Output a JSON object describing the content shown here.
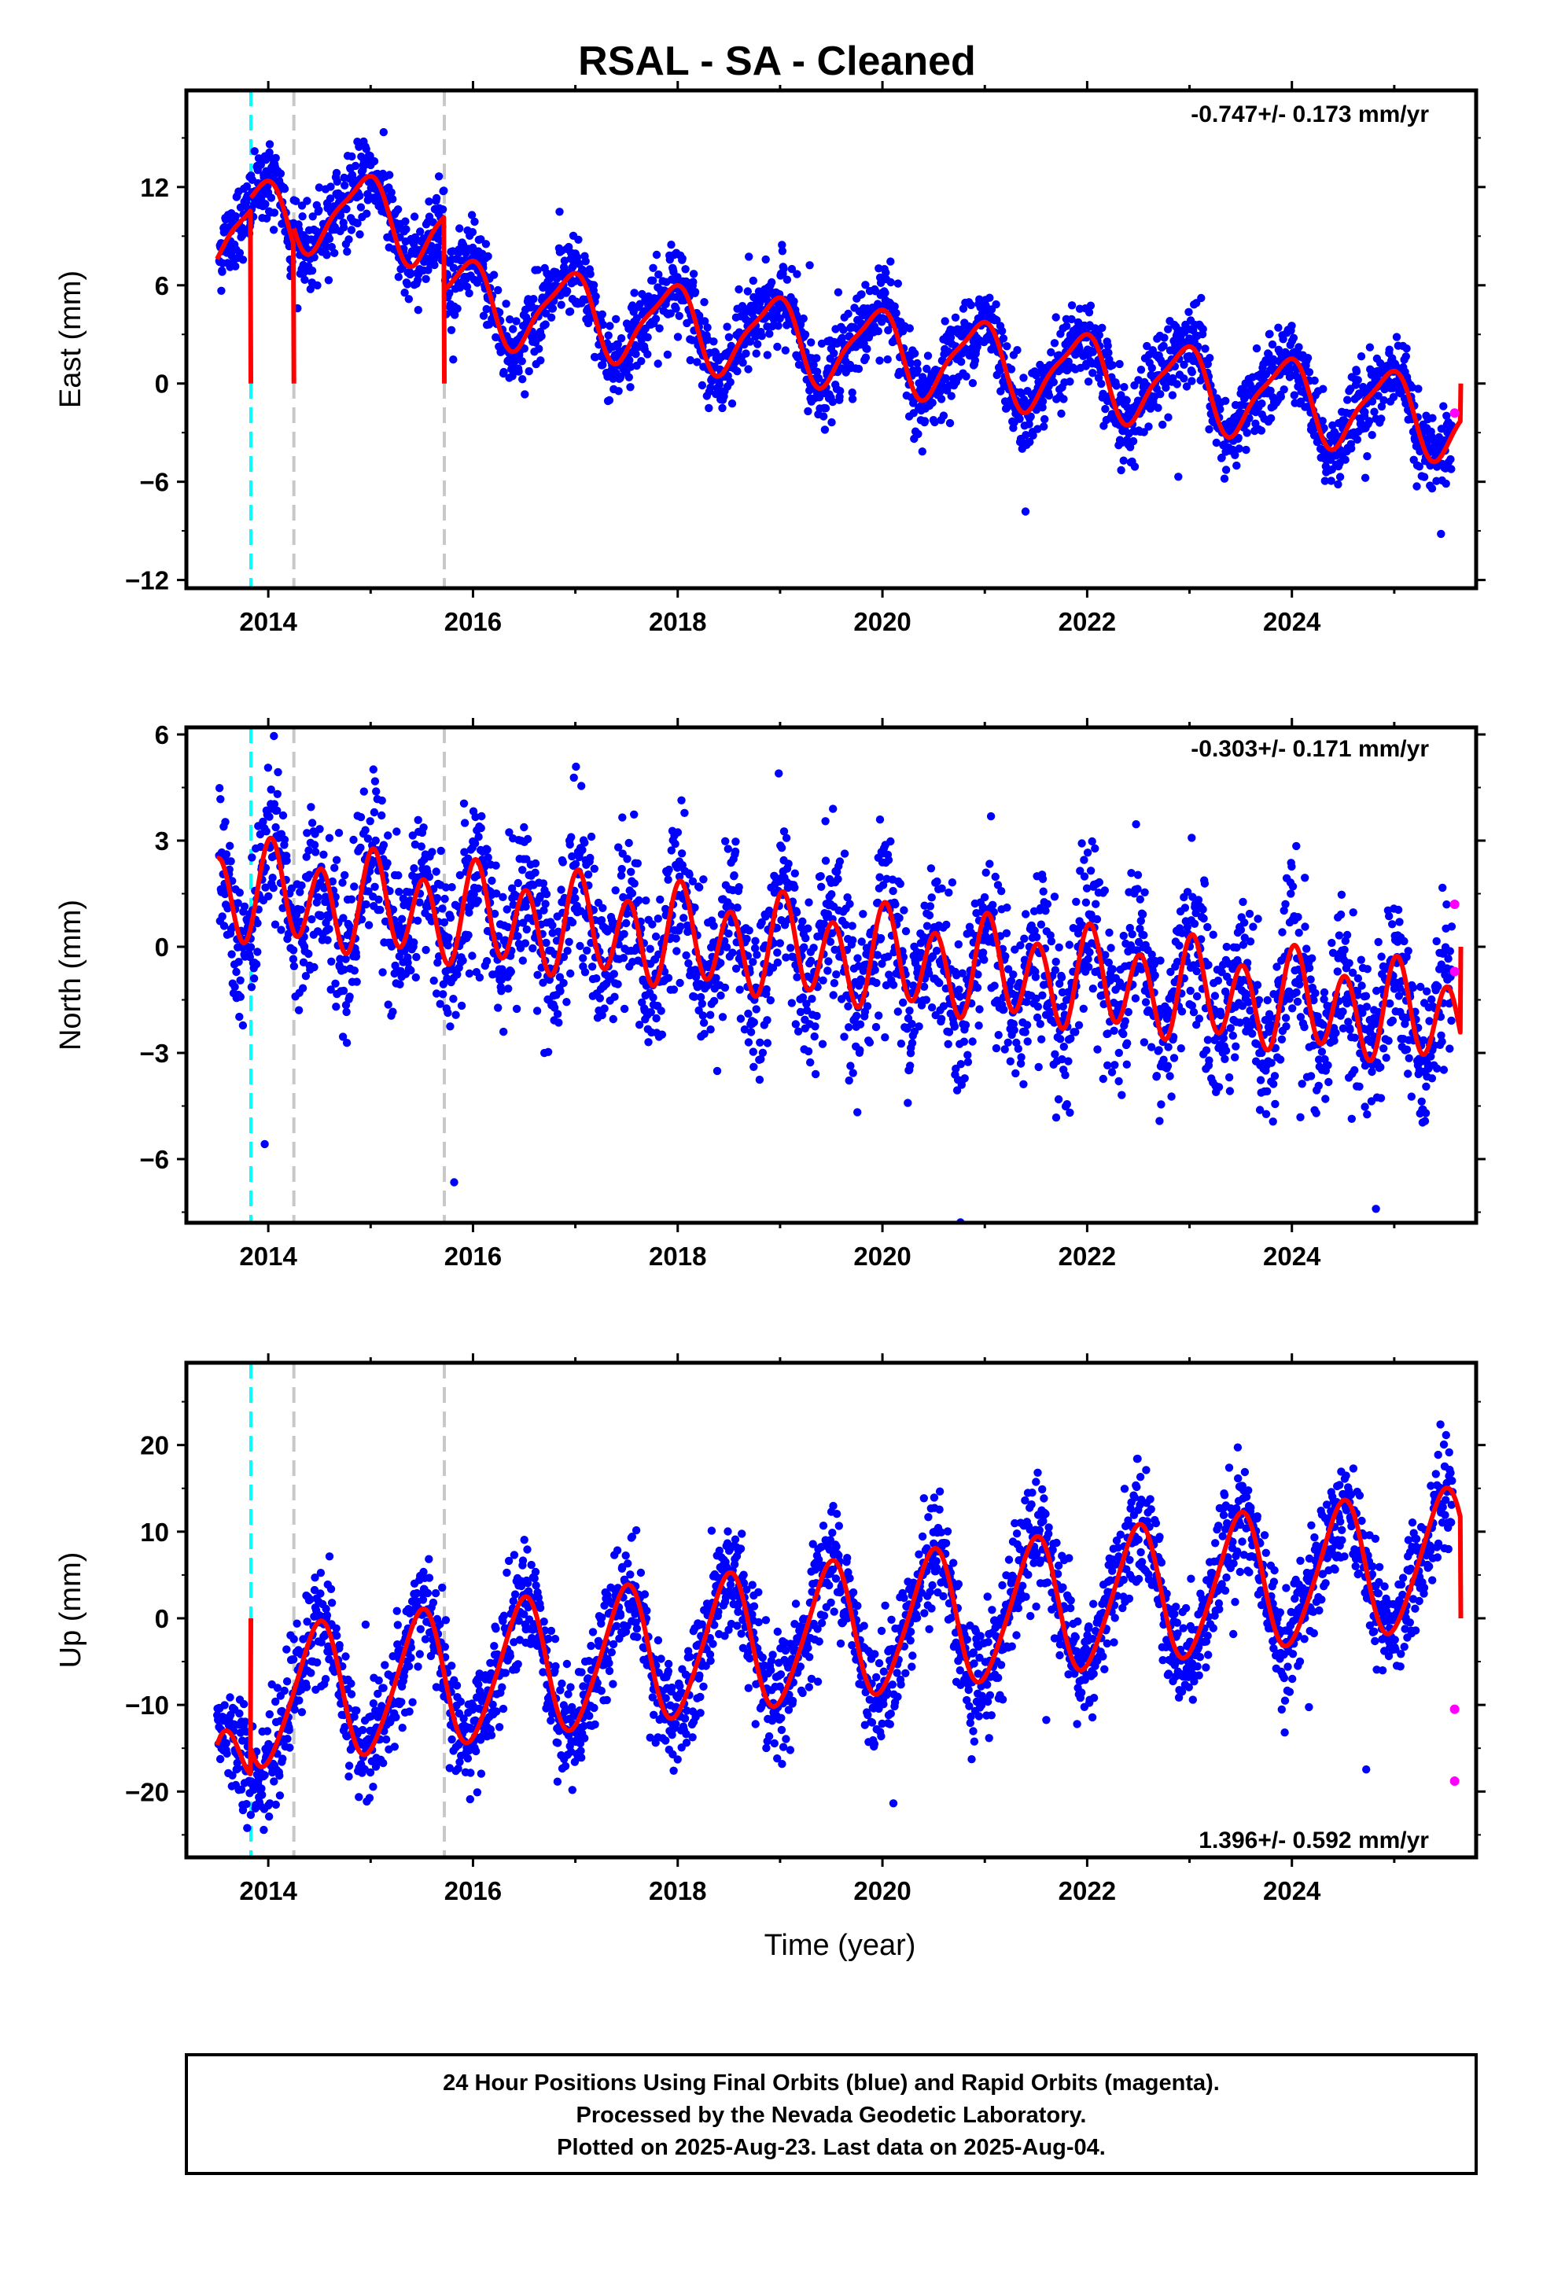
{
  "title": "RSAL  - SA - Cleaned",
  "xlabel": "Time (year)",
  "footer": [
    "24 Hour Positions Using Final Orbits (blue) and Rapid Orbits (magenta).",
    "Processed by the Nevada Geodetic Laboratory.",
    "Plotted on 2025-Aug-23. Last data on 2025-Aug-04."
  ],
  "colors": {
    "final_orbits": "#0000ff",
    "rapid_orbits": "#ff00ff",
    "model": "#ff0000",
    "antenna_change": "#00ffff",
    "other_change": "#c8c8c8"
  },
  "chart_data": [
    {
      "type": "scatter",
      "name": "east",
      "ylabel": "East (mm)",
      "rate_label": "-0.747+/- 0.173 mm/yr",
      "xlim": [
        2013.2,
        2025.8
      ],
      "ylim": [
        -12.5,
        17.9
      ],
      "yticks": [
        -12,
        -6,
        0,
        6,
        12
      ],
      "xticks": [
        2014,
        2016,
        2018,
        2020,
        2022,
        2024
      ],
      "step_epochs": [
        {
          "t": 2013.83,
          "kind": "antenna"
        },
        {
          "t": 2014.25,
          "kind": "other"
        },
        {
          "t": 2015.72,
          "kind": "other"
        }
      ],
      "model": {
        "segments": [
          {
            "t0": 2013.2,
            "t1": 2013.83,
            "offset": 9.5,
            "t_ref": 2013.5
          },
          {
            "t0": 2013.83,
            "t1": 2014.25,
            "offset": 9.9,
            "t_ref": 2014.0
          },
          {
            "t0": 2014.25,
            "t1": 2015.72,
            "offset": 10.2,
            "t_ref": 2015.0
          },
          {
            "t0": 2015.72,
            "t1": 2025.65,
            "offset": 1.8,
            "t_ref": 2020.3
          }
        ],
        "rate": -0.747,
        "annual_amp": 2.4,
        "annual_phase": 2.0,
        "semi_amp": 0.6,
        "semi_phase": 0.5
      },
      "scatter_sigma": 1.2,
      "rapid_points": [
        {
          "x": 2025.59,
          "y": -1.8
        }
      ]
    },
    {
      "type": "scatter",
      "name": "north",
      "ylabel": "North (mm)",
      "rate_label": "-0.303+/- 0.171 mm/yr",
      "xlim": [
        2013.2,
        2025.8
      ],
      "ylim": [
        -7.8,
        6.2
      ],
      "yticks": [
        -6,
        -3,
        0,
        3,
        6
      ],
      "xticks": [
        2014,
        2016,
        2018,
        2020,
        2022,
        2024
      ],
      "step_epochs": [
        {
          "t": 2013.83,
          "kind": "antenna"
        },
        {
          "t": 2014.25,
          "kind": "other"
        },
        {
          "t": 2015.72,
          "kind": "other"
        }
      ],
      "model": {
        "segments": [
          {
            "t0": 2013.2,
            "t1": 2025.65,
            "offset": -0.2,
            "t_ref": 2019.5
          }
        ],
        "rate": -0.303,
        "annual_amp": 0.4,
        "annual_phase": 1.0,
        "semi_amp": 1.25,
        "semi_phase": 1.3
      },
      "scatter_sigma": 1.15,
      "rapid_points": [
        {
          "x": 2025.59,
          "y": 1.2
        },
        {
          "x": 2025.59,
          "y": -0.7
        }
      ]
    },
    {
      "type": "scatter",
      "name": "up",
      "ylabel": "Up (mm)",
      "rate_label": "1.396+/- 0.592 mm/yr",
      "xlim": [
        2013.2,
        2025.8
      ],
      "ylim": [
        -27.6,
        29.5
      ],
      "yticks": [
        -20,
        -10,
        0,
        10,
        20
      ],
      "xticks": [
        2014,
        2016,
        2018,
        2020,
        2022,
        2024
      ],
      "step_epochs": [
        {
          "t": 2013.83,
          "kind": "antenna"
        },
        {
          "t": 2014.25,
          "kind": "other"
        },
        {
          "t": 2015.72,
          "kind": "other"
        }
      ],
      "model": {
        "segments": [
          {
            "t0": 2013.5,
            "t1": 2013.83,
            "offset": -17.5,
            "t_ref": 2013.67,
            "extra_rate": 30
          },
          {
            "t0": 2013.83,
            "t1": 2025.65,
            "offset": -1.6,
            "t_ref": 2019.5
          }
        ],
        "rate": 1.396,
        "annual_amp": 7.8,
        "annual_phase": -1.45,
        "semi_amp": 1.0,
        "semi_phase": 0.5
      },
      "scatter_sigma": 3.2,
      "rapid_points": [
        {
          "x": 2025.59,
          "y": -10.5
        },
        {
          "x": 2025.59,
          "y": -18.8
        }
      ]
    }
  ]
}
